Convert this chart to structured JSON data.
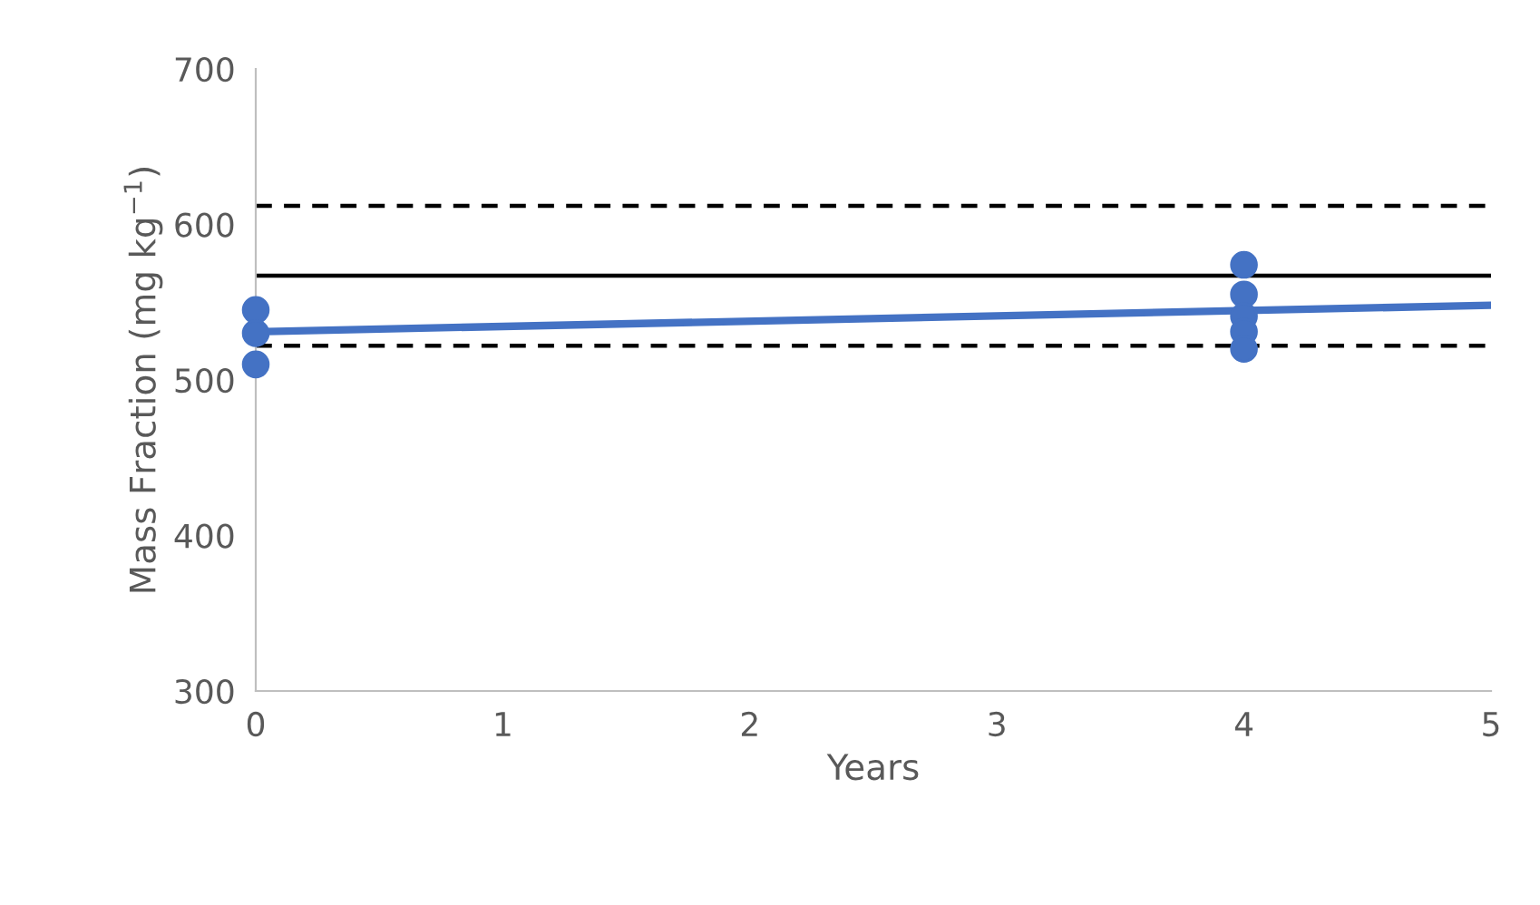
{
  "chart_data": {
    "type": "scatter",
    "xlabel": "Years",
    "ylabel": "Mass Fraction (mg kg$^{−1}$)",
    "series": [
      {
        "color": "#4472c4",
        "marker": "circle",
        "x": [
          0,
          0,
          0,
          4,
          4,
          4,
          4,
          4
        ],
        "values": [
          545,
          530,
          510,
          574,
          555,
          541,
          531,
          520
        ]
      },
      {
        "type": "line",
        "color": "#4472c4",
        "x": [
          0,
          5
        ],
        "values": [
          531,
          548
        ]
      }
    ],
    "ref_lines": [
      {
        "axis": "y",
        "value": 612,
        "color": "#000000",
        "line_style": "dashed"
      },
      {
        "axis": "y",
        "value": 567,
        "color": "#000000",
        "line_style": "solid"
      },
      {
        "axis": "y",
        "value": 522,
        "color": "#000000",
        "line_style": "dashed"
      }
    ],
    "xlim": [
      0,
      5
    ],
    "xticks": [
      0,
      1,
      2,
      3,
      4,
      5
    ],
    "ylim": [
      300,
      700
    ],
    "yticks": [
      300,
      400,
      500,
      600,
      700
    ],
    "grid": false
  }
}
